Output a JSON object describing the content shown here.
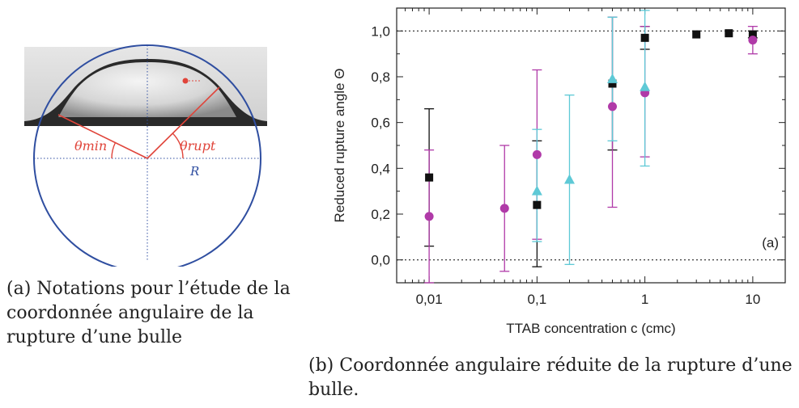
{
  "figure_a": {
    "theta_min": "θmin",
    "theta_rupt": "θrupt",
    "radius_label": "R",
    "caption": "(a) Notations pour l’étude de la coordonnée angulaire de la rupture d’une bulle"
  },
  "figure_b": {
    "caption": "(b) Coordonnée angulaire réduite de la rupture d’une bulle."
  },
  "colors": {
    "black_series": "#111111",
    "magenta_series": "#b03aa8",
    "cyan_series": "#5ec9d6",
    "bubble_outline": "#2f4ea0",
    "angle_lines": "#e0443a"
  },
  "chart_data": {
    "type": "scatter",
    "xscale": "log",
    "xlim": [
      0.005,
      20
    ],
    "ylim": [
      -0.1,
      1.1
    ],
    "xlabel": "TTAB concentration c (cmc)",
    "ylabel": "Reduced rupture angle Θ",
    "xticks": [
      {
        "v": 0.01,
        "label": "0,01"
      },
      {
        "v": 0.1,
        "label": "0,1"
      },
      {
        "v": 1,
        "label": "1"
      },
      {
        "v": 10,
        "label": "10"
      }
    ],
    "yticks": [
      {
        "v": 0.0,
        "label": "0,0"
      },
      {
        "v": 0.2,
        "label": "0,2"
      },
      {
        "v": 0.4,
        "label": "0,4"
      },
      {
        "v": 0.6,
        "label": "0,6"
      },
      {
        "v": 0.8,
        "label": "0,8"
      },
      {
        "v": 1.0,
        "label": "1,0"
      }
    ],
    "reference_lines": [
      0.0,
      1.0
    ],
    "panel_label": "(a)",
    "series": [
      {
        "marker": "square",
        "color": "#111111",
        "points": [
          {
            "x": 0.01,
            "y": 0.36,
            "lo": 0.06,
            "hi": 0.66
          },
          {
            "x": 0.1,
            "y": 0.24,
            "lo": -0.03,
            "hi": 0.52
          },
          {
            "x": 0.5,
            "y": 0.77,
            "lo": 0.48,
            "hi": 1.06
          },
          {
            "x": 1,
            "y": 0.97,
            "lo": 0.92,
            "hi": 1.02
          },
          {
            "x": 3,
            "y": 0.985,
            "lo": null,
            "hi": null
          },
          {
            "x": 6,
            "y": 0.99,
            "lo": null,
            "hi": null
          },
          {
            "x": 10,
            "y": 0.985,
            "lo": 0.97,
            "hi": 1.0
          }
        ]
      },
      {
        "marker": "circle",
        "color": "#b03aa8",
        "points": [
          {
            "x": 0.01,
            "y": 0.19,
            "lo": -0.1,
            "hi": 0.48
          },
          {
            "x": 0.05,
            "y": 0.225,
            "lo": -0.05,
            "hi": 0.5
          },
          {
            "x": 0.1,
            "y": 0.46,
            "lo": 0.09,
            "hi": 0.83
          },
          {
            "x": 0.5,
            "y": 0.67,
            "lo": 0.23,
            "hi": 1.06
          },
          {
            "x": 1,
            "y": 0.73,
            "lo": 0.45,
            "hi": 1.02
          },
          {
            "x": 10,
            "y": 0.96,
            "lo": 0.9,
            "hi": 1.02
          }
        ]
      },
      {
        "marker": "triangle",
        "color": "#5ec9d6",
        "points": [
          {
            "x": 0.1,
            "y": 0.3,
            "lo": 0.08,
            "hi": 0.57
          },
          {
            "x": 0.2,
            "y": 0.35,
            "lo": -0.02,
            "hi": 0.72
          },
          {
            "x": 0.5,
            "y": 0.79,
            "lo": 0.52,
            "hi": 1.06
          },
          {
            "x": 1,
            "y": 0.755,
            "lo": 0.41,
            "hi": 1.09
          }
        ]
      }
    ]
  }
}
